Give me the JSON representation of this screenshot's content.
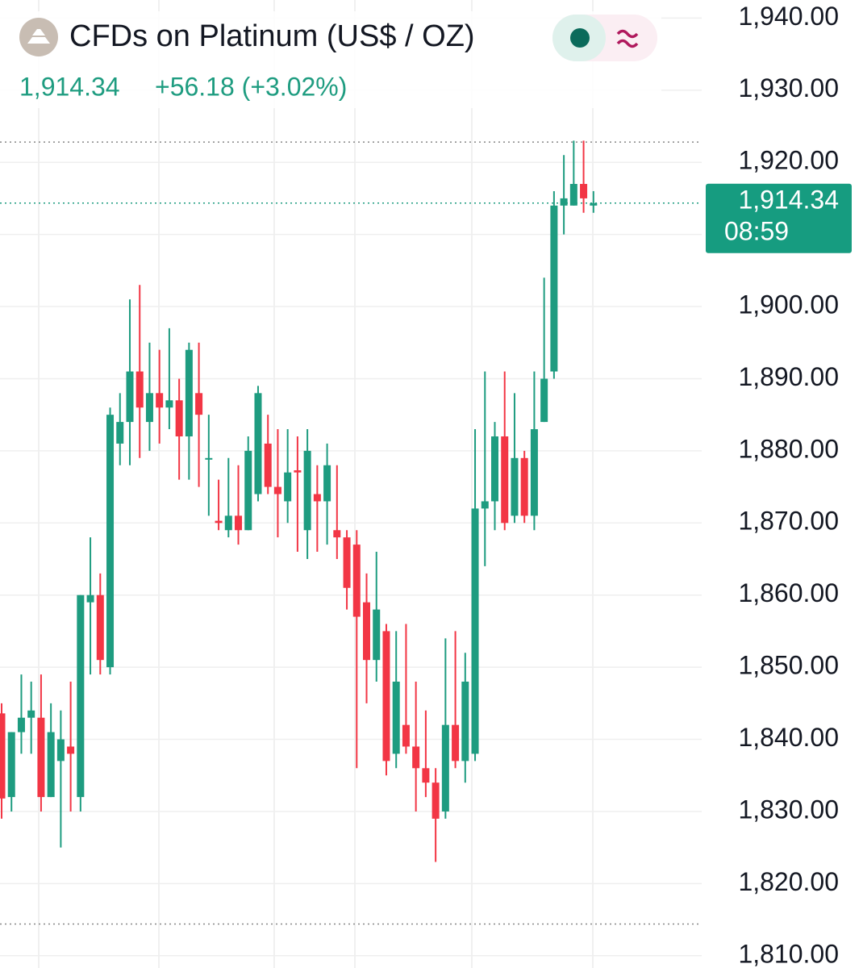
{
  "chart_data": {
    "type": "candlestick",
    "title": "CFDs on Platinum (US$ / OZ)",
    "price_text": "1,914.34",
    "change_text": "+56.18 (+3.02%)",
    "up_color": "#1e9c80",
    "down_color": "#f23645",
    "open": [
      1843.6,
      1832,
      1841,
      1843,
      1843,
      1832,
      1837,
      1839,
      1832,
      1859,
      1860,
      1850,
      1881,
      1884,
      1891,
      1884,
      1888,
      1886,
      1887,
      1882,
      1888,
      1879,
      1870.3,
      1869,
      1871,
      1869,
      1874,
      1881,
      1875,
      1873,
      1877.3,
      1869,
      1874,
      1873,
      1869,
      1868,
      1867,
      1859,
      1851,
      1855,
      1838,
      1842,
      1839,
      1836,
      1834,
      1830,
      1842,
      1837,
      1838,
      1872,
      1873,
      1882,
      1871,
      1879,
      1871,
      1884,
      1891,
      1914,
      1914,
      1917,
      1914
    ],
    "high": [
      1845,
      1841,
      1849,
      1848,
      1849,
      1845,
      1844,
      1848,
      1860,
      1868,
      1863,
      1886,
      1888,
      1901,
      1903,
      1895,
      1894,
      1897,
      1890,
      1895,
      1895,
      1885,
      1876,
      1879,
      1878,
      1882,
      1889,
      1885,
      1883,
      1883,
      1882,
      1883,
      1878,
      1881,
      1878,
      1869,
      1869,
      1863,
      1866,
      1856,
      1855,
      1856,
      1848,
      1844,
      1836,
      1854,
      1855,
      1852,
      1883,
      1891,
      1884,
      1891,
      1888,
      1880,
      1891,
      1904,
      1916,
      1921,
      1923,
      1923,
      1916
    ],
    "low": [
      1829,
      1830,
      1838,
      1838,
      1830,
      1832,
      1825,
      1830,
      1830,
      1849,
      1849,
      1849,
      1878,
      1878,
      1879,
      1880,
      1881,
      1883,
      1876,
      1876,
      1875,
      1871,
      1869,
      1868,
      1867,
      1869,
      1873,
      1874,
      1868,
      1870,
      1866,
      1865,
      1866,
      1867,
      1865,
      1858,
      1836,
      1845,
      1848,
      1835,
      1836,
      1838,
      1830,
      1832,
      1823,
      1829,
      1836,
      1834,
      1837,
      1864,
      1869,
      1869,
      1870,
      1870,
      1869,
      1884,
      1890,
      1910,
      1914,
      1913,
      1913
    ],
    "close": [
      1831.8,
      1841,
      1843,
      1844,
      1832,
      1841,
      1840,
      1838,
      1860,
      1860,
      1851,
      1885,
      1884,
      1891,
      1886,
      1888,
      1886,
      1887,
      1882,
      1894,
      1885,
      1879,
      1870,
      1871,
      1869,
      1880,
      1888,
      1875,
      1874,
      1877,
      1877,
      1880,
      1873,
      1878,
      1868,
      1861,
      1857,
      1851,
      1858,
      1837,
      1848,
      1839,
      1836,
      1834,
      1829,
      1842,
      1837,
      1848,
      1872,
      1873,
      1882,
      1870,
      1879,
      1871,
      1883,
      1890,
      1914,
      1915,
      1917,
      1915,
      1914.34
    ],
    "ylim": [
      1808.3,
      1942.5
    ],
    "yticks": [
      {
        "value": 1810,
        "label": "1,810.00"
      },
      {
        "value": 1820,
        "label": "1,820.00"
      },
      {
        "value": 1830,
        "label": "1,830.00"
      },
      {
        "value": 1840,
        "label": "1,840.00"
      },
      {
        "value": 1850,
        "label": "1,850.00"
      },
      {
        "value": 1860,
        "label": "1,860.00"
      },
      {
        "value": 1870,
        "label": "1,870.00"
      },
      {
        "value": 1880,
        "label": "1,880.00"
      },
      {
        "value": 1890,
        "label": "1,890.00"
      },
      {
        "value": 1900,
        "label": "1,900.00"
      },
      {
        "value": 1910,
        "label": "1,910.00"
      },
      {
        "value": 1920,
        "label": "1,920.00"
      },
      {
        "value": 1930,
        "label": "1,930.00"
      },
      {
        "value": 1940,
        "label": "1,940.00"
      }
    ],
    "high_low_lines": [
      1922.8,
      1814.4
    ],
    "last_price": {
      "value": 1914.34,
      "label": "1,914.34"
    },
    "countdown": "08:59",
    "grid": true
  }
}
